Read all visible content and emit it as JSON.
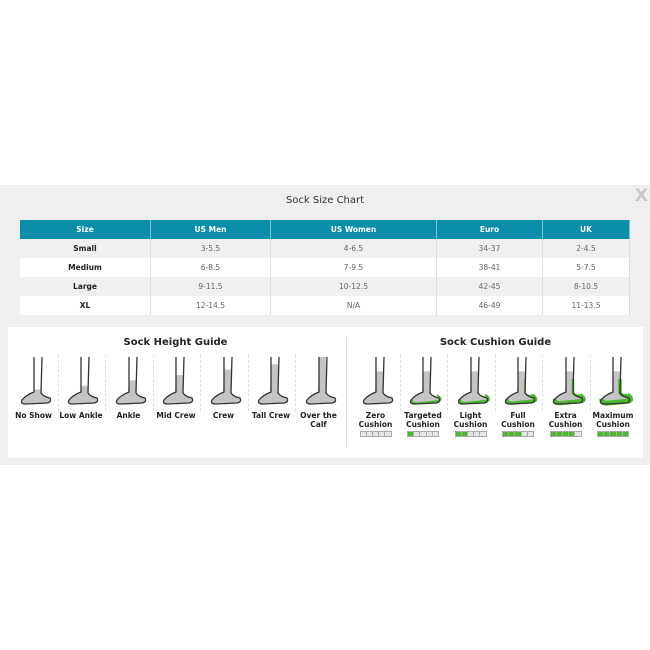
{
  "title": "Sock Size Chart",
  "close_label": "X",
  "table": {
    "headers": [
      "Size",
      "US Men",
      "US Women",
      "Euro",
      "UK"
    ],
    "rows": [
      [
        "Small",
        "3-5.5",
        "4-6.5",
        "34-37",
        "2-4.5"
      ],
      [
        "Medium",
        "6-8.5",
        "7-9.5",
        "38-41",
        "5-7.5"
      ],
      [
        "Large",
        "9-11.5",
        "10-12.5",
        "42-45",
        "8-10.5"
      ],
      [
        "XL",
        "12-14.5",
        "N/A",
        "46-49",
        "11-13.5"
      ]
    ]
  },
  "colors": {
    "header": "#0b8ea9",
    "cushion": "#4cb82f",
    "sock_fill": "#c4c4c4"
  },
  "height_guide": {
    "title": "Sock Height Guide",
    "items": [
      {
        "label": "No Show",
        "icon": "no-show-sock-icon",
        "height": 0.1
      },
      {
        "label": "Low Ankle",
        "icon": "low-ankle-sock-icon",
        "height": 0.2
      },
      {
        "label": "Ankle",
        "icon": "ankle-sock-icon",
        "height": 0.35
      },
      {
        "label": "Mid Crew",
        "icon": "mid-crew-sock-icon",
        "height": 0.5
      },
      {
        "label": "Crew",
        "icon": "crew-sock-icon",
        "height": 0.65
      },
      {
        "label": "Tall Crew",
        "icon": "tall-crew-sock-icon",
        "height": 0.8
      },
      {
        "label": "Over the Calf",
        "icon": "over-the-calf-sock-icon",
        "height": 1.0
      }
    ]
  },
  "cushion_guide": {
    "title": "Sock Cushion Guide",
    "items": [
      {
        "label": "Zero Cushion",
        "icon": "zero-cushion-sock-icon",
        "level": 0
      },
      {
        "label": "Targeted Cushion",
        "icon": "targeted-cushion-sock-icon",
        "level": 1
      },
      {
        "label": "Light Cushion",
        "icon": "light-cushion-sock-icon",
        "level": 2
      },
      {
        "label": "Full Cushion",
        "icon": "full-cushion-sock-icon",
        "level": 3
      },
      {
        "label": "Extra Cushion",
        "icon": "extra-cushion-sock-icon",
        "level": 4
      },
      {
        "label": "Maximum Cushion",
        "icon": "maximum-cushion-sock-icon",
        "level": 5
      }
    ],
    "max_level": 5
  }
}
